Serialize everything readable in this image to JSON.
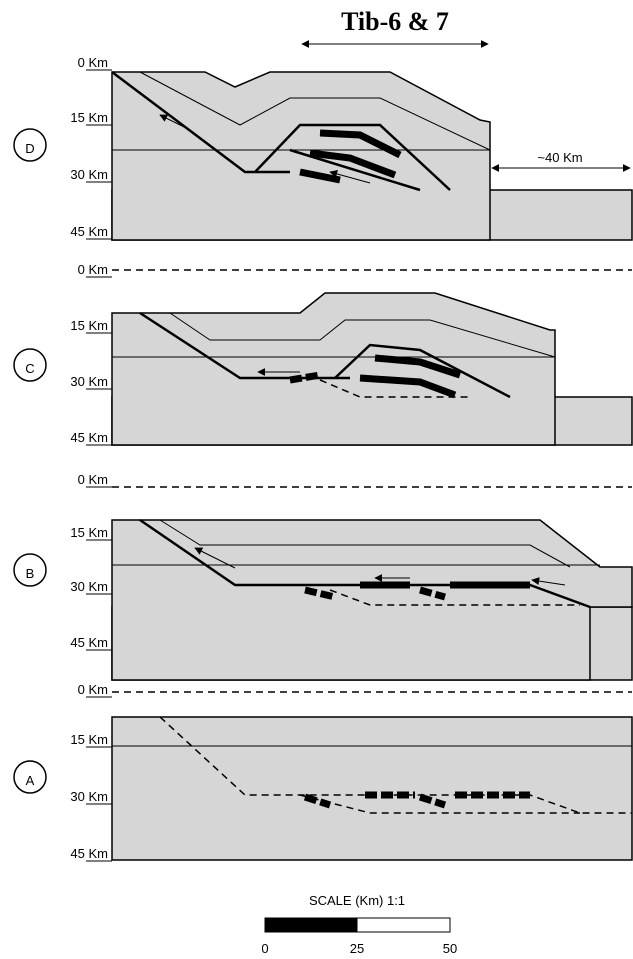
{
  "header": {
    "title": "Tib-6 & 7"
  },
  "panels": [
    {
      "label": "D",
      "depths": [
        "0 Km",
        "15 Km",
        "30 Km",
        "45 Km"
      ]
    },
    {
      "label": "C",
      "depths": [
        "0 Km",
        "15 Km",
        "30 Km",
        "45 Km"
      ]
    },
    {
      "label": "B",
      "depths": [
        "0 Km",
        "15 Km",
        "30 Km",
        "45 Km"
      ]
    },
    {
      "label": "A",
      "depths": [
        "0 Km",
        "15 Km",
        "30 Km",
        "45 Km"
      ]
    }
  ],
  "annotation": "~40 Km",
  "scale": {
    "title": "SCALE (Km)  1:1",
    "ticks": [
      "0",
      "25",
      "50"
    ]
  }
}
